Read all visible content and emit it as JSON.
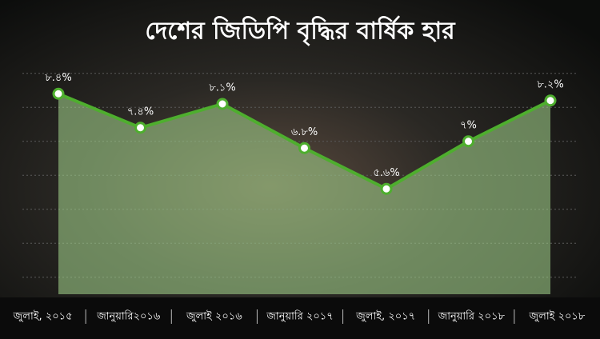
{
  "chart_data": {
    "type": "area",
    "title": "দেশের জিডিপি বৃদ্ধির বার্ষিক হার",
    "categories": [
      "জুলাই, ২০১৫",
      "জানুয়ারি২০১৬",
      "জুলাই ২০১৬",
      "জানুয়ারি ২০১৭",
      "জুলাই, ২০১৭",
      "জানুয়ারি ২০১৮",
      "জুলাই ২০১৮"
    ],
    "values": [
      8.4,
      7.4,
      8.1,
      6.8,
      5.6,
      7,
      8.2
    ],
    "value_labels": [
      "৮.৪%",
      "৭.৪%",
      "৮.১%",
      "৬.৮%",
      "৫.৬%",
      "৭%",
      "৮.২%"
    ],
    "color": "#4eae2e",
    "ylim": [
      2.5,
      9.3
    ],
    "yticks": [
      3,
      4,
      5,
      6,
      7,
      8,
      9
    ],
    "grid": true
  }
}
